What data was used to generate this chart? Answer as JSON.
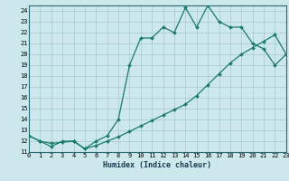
{
  "xlabel": "Humidex (Indice chaleur)",
  "bg_color": "#cce8ec",
  "grid_color": "#aacdd4",
  "line_color": "#1a7a6e",
  "line1_x": [
    0,
    1,
    2,
    3,
    4,
    5,
    6,
    7,
    8,
    9,
    10,
    11,
    12,
    13,
    14,
    15,
    16,
    17,
    18,
    19,
    20,
    21,
    22,
    23
  ],
  "line1_y": [
    12.5,
    12.0,
    11.5,
    12.0,
    12.0,
    11.3,
    12.0,
    12.5,
    14.0,
    19.0,
    21.5,
    21.5,
    22.5,
    22.0,
    24.3,
    22.5,
    24.5,
    23.0,
    22.5,
    22.5,
    21.0,
    20.5,
    19.0,
    20.0
  ],
  "line2_x": [
    0,
    1,
    2,
    3,
    4,
    5,
    6,
    7,
    8,
    9,
    10,
    11,
    12,
    13,
    14,
    15,
    16,
    17,
    18,
    19,
    20,
    21,
    22,
    23
  ],
  "line2_y": [
    12.5,
    12.0,
    11.8,
    11.9,
    12.0,
    11.3,
    11.6,
    12.0,
    12.4,
    12.9,
    13.4,
    13.9,
    14.4,
    14.9,
    15.4,
    16.2,
    17.2,
    18.2,
    19.2,
    20.0,
    20.6,
    21.2,
    21.8,
    20.0
  ],
  "xlim": [
    0,
    23
  ],
  "ylim": [
    11,
    24.5
  ],
  "yticks": [
    11,
    12,
    13,
    14,
    15,
    16,
    17,
    18,
    19,
    20,
    21,
    22,
    23,
    24
  ],
  "xticks": [
    0,
    1,
    2,
    3,
    4,
    5,
    6,
    7,
    8,
    9,
    10,
    11,
    12,
    13,
    14,
    15,
    16,
    17,
    18,
    19,
    20,
    21,
    22,
    23
  ],
  "tick_fontsize": 5.0,
  "xlabel_fontsize": 6.0
}
